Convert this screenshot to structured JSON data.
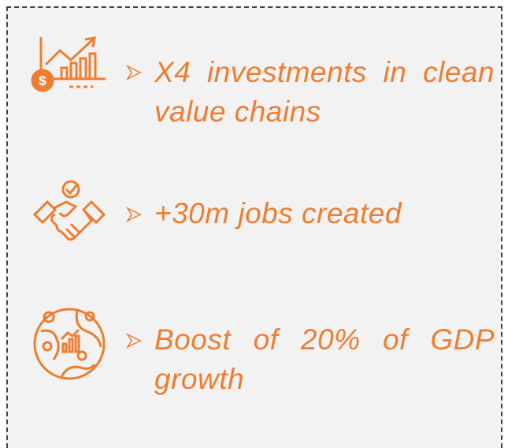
{
  "items": [
    {
      "text": "X4 investments in clean value chains"
    },
    {
      "text": "+30m jobs created"
    },
    {
      "text": "Boost of 20% of GDP growth"
    }
  ]
}
